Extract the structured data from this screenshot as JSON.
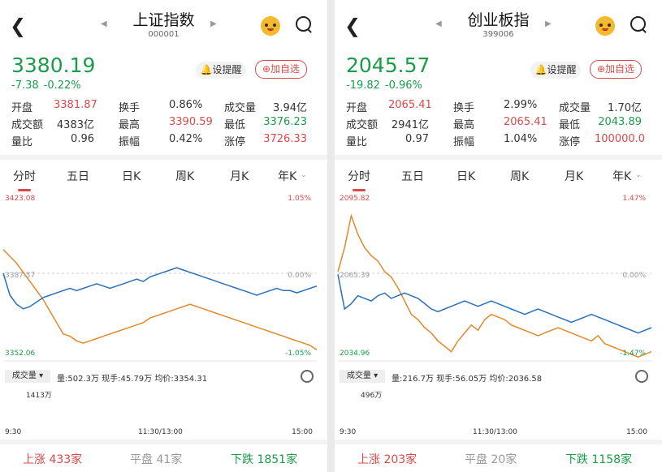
{
  "panels": [
    {
      "title": "上证指数",
      "code": "000001",
      "price": "3380.19",
      "change": "-7.38",
      "change_pct": "-0.22%",
      "remind_label": "设提醒",
      "add_label": "加自选",
      "stats": [
        [
          "开盘",
          "3381.87",
          "red"
        ],
        [
          "换手",
          "0.86%",
          ""
        ],
        [
          "成交量",
          "3.94亿",
          ""
        ],
        [
          "成交额",
          "4383亿",
          ""
        ],
        [
          "最高",
          "3390.59",
          "red"
        ],
        [
          "最低",
          "3376.23",
          "green"
        ],
        [
          "量比",
          "0.96",
          ""
        ],
        [
          "振幅",
          "0.42%",
          ""
        ],
        [
          "涨停",
          "3726.33",
          "red"
        ]
      ],
      "tabs": [
        "分时",
        "五日",
        "日K",
        "周K",
        "月K",
        "年K"
      ],
      "chart": {
        "y_high": "3423.08",
        "y_mid": "3387.57",
        "y_low": "3352.06",
        "pct_high": "1.05%",
        "pct_mid": "0.00%",
        "pct_low": "-1.05%",
        "blue": [
          3387.6,
          3378,
          3374,
          3372,
          3373,
          3375,
          3377,
          3378,
          3379,
          3380,
          3381,
          3380,
          3381,
          3382,
          3383,
          3382,
          3381,
          3382,
          3383,
          3384,
          3385,
          3384,
          3386,
          3387,
          3388,
          3389,
          3390,
          3389,
          3388,
          3387,
          3386,
          3385,
          3384,
          3383,
          3382,
          3381,
          3380,
          3379,
          3378,
          3379,
          3380,
          3381,
          3380,
          3380,
          3379,
          3380,
          3381,
          3382
        ],
        "orange": [
          3398,
          3395,
          3392,
          3388,
          3384,
          3380,
          3376,
          3371,
          3366,
          3361,
          3360,
          3358,
          3357,
          3358,
          3359,
          3360,
          3361,
          3362,
          3363,
          3364,
          3365,
          3366,
          3368,
          3369,
          3370,
          3371,
          3372,
          3373,
          3374,
          3373,
          3372,
          3371,
          3370,
          3369,
          3368,
          3367,
          3366,
          3365,
          3364,
          3363,
          3362,
          3361,
          3360,
          3359,
          3358,
          3357,
          3356,
          3354
        ],
        "vol_label": "成交量",
        "vol_info": "量:502.3万  现手:45.79万  均价:3354.31",
        "vol_max": "1413万",
        "time_start": "9:30",
        "time_mid": "11:30/13:00",
        "time_end": "15:00"
      },
      "breadth": {
        "up_label": "上涨",
        "up": "433家",
        "flat_label": "平盘",
        "flat": "41家",
        "down_label": "下跌",
        "down": "1851家"
      }
    },
    {
      "title": "创业板指",
      "code": "399006",
      "price": "2045.57",
      "change": "-19.82",
      "change_pct": "-0.96%",
      "remind_label": "设提醒",
      "add_label": "加自选",
      "stats": [
        [
          "开盘",
          "2065.41",
          "red"
        ],
        [
          "换手",
          "2.99%",
          ""
        ],
        [
          "成交量",
          "1.70亿",
          ""
        ],
        [
          "成交额",
          "2941亿",
          ""
        ],
        [
          "最高",
          "2065.41",
          "red"
        ],
        [
          "最低",
          "2043.89",
          "green"
        ],
        [
          "量比",
          "0.97",
          ""
        ],
        [
          "振幅",
          "1.04%",
          ""
        ],
        [
          "涨停",
          "100000.0",
          "red"
        ]
      ],
      "tabs": [
        "分时",
        "五日",
        "日K",
        "周K",
        "月K",
        "年K"
      ],
      "chart": {
        "y_high": "2095.82",
        "y_mid": "2065.39",
        "y_low": "2034.96",
        "pct_high": "1.47%",
        "pct_mid": "0.00%",
        "pct_low": "-1.47%",
        "blue": [
          2065,
          2052,
          2054,
          2057,
          2056,
          2055,
          2057,
          2058,
          2056,
          2057,
          2058,
          2057,
          2056,
          2054,
          2052,
          2051,
          2052,
          2053,
          2054,
          2055,
          2054,
          2053,
          2054,
          2055,
          2054,
          2053,
          2052,
          2051,
          2050,
          2051,
          2052,
          2051,
          2050,
          2049,
          2048,
          2047,
          2048,
          2049,
          2050,
          2049,
          2048,
          2047,
          2046,
          2045,
          2044,
          2043,
          2044,
          2045
        ],
        "orange": [
          2066,
          2075,
          2087,
          2080,
          2075,
          2072,
          2070,
          2066,
          2064,
          2060,
          2055,
          2050,
          2048,
          2045,
          2043,
          2040,
          2038,
          2036,
          2040,
          2043,
          2046,
          2044,
          2048,
          2050,
          2049,
          2048,
          2046,
          2045,
          2044,
          2043,
          2042,
          2043,
          2044,
          2045,
          2044,
          2043,
          2042,
          2041,
          2040,
          2042,
          2039,
          2038,
          2037,
          2036,
          2035,
          2034,
          2035,
          2036
        ],
        "vol_label": "成交量",
        "vol_info": "量:216.7万  现手:56.05万  均价:2036.58",
        "vol_max": "496万",
        "time_start": "9:30",
        "time_mid": "11:30/13:00",
        "time_end": "15:00"
      },
      "breadth": {
        "up_label": "上涨",
        "up": "203家",
        "flat_label": "平盘",
        "flat": "20家",
        "down_label": "下跌",
        "down": "1158家"
      }
    }
  ],
  "colors": {
    "red": "#d84a4a",
    "green": "#1a9c4a",
    "blue": "#2a6fb8",
    "orange": "#e2892b"
  }
}
